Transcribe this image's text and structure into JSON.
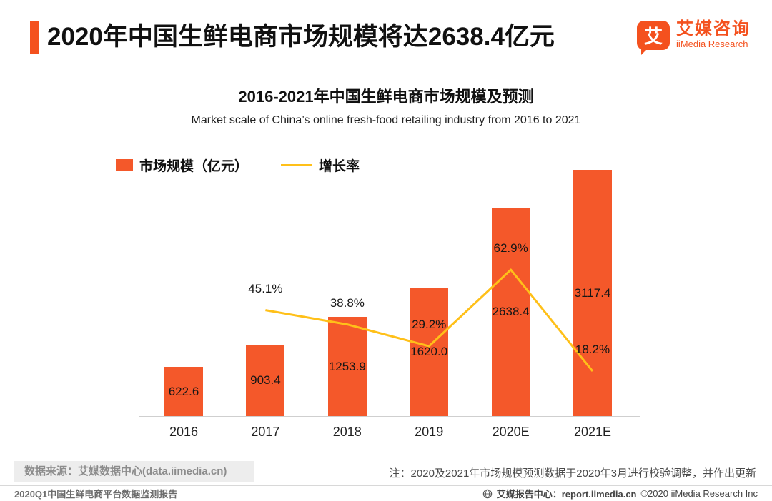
{
  "header": {
    "title": "2020年中国生鲜电商市场规模将达2638.4亿元",
    "logo": {
      "mark": "艾",
      "name_cn": "艾媒咨询",
      "name_en": "iiMedia Research"
    }
  },
  "chart_data": {
    "type": "bar+line",
    "title": "2016-2021年中国生鲜电商市场规模及预测",
    "subtitle": "Market scale of China’s online fresh-food retailing industry from 2016 to 2021",
    "categories": [
      "2016",
      "2017",
      "2018",
      "2019",
      "2020E",
      "2021E"
    ],
    "series": [
      {
        "name": "市场规模（亿元）",
        "type": "bar",
        "color": "#F4582A",
        "values": [
          622.6,
          903.4,
          1253.9,
          1620.0,
          2638.4,
          3117.4
        ]
      },
      {
        "name": "增长率",
        "type": "line",
        "color": "#FFC019",
        "unit": "%",
        "values": [
          null,
          45.1,
          38.8,
          29.2,
          62.9,
          18.2
        ]
      }
    ],
    "ylim": [
      0,
      3300
    ],
    "grid": false,
    "legend_position": "top-left"
  },
  "footer": {
    "source": "数据来源：艾媒数据中心(data.iimedia.cn)",
    "note": "注：2020及2021年市场规模预测数据于2020年3月进行校验调整，并作出更新",
    "report": "2020Q1中国生鲜电商平台数据监测报告",
    "center": "艾媒报告中心：report.iimedia.cn",
    "copyright": "©2020  iiMedia Research Inc"
  },
  "colors": {
    "accent": "#F4511E",
    "bar": "#F4582A",
    "line": "#FFC019",
    "source_box_bg": "#EDEDED",
    "source_text": "#8C8C8C"
  }
}
